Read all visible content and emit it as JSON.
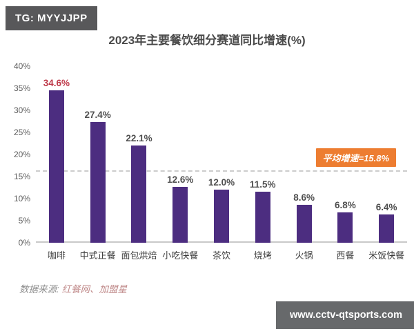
{
  "badges": {
    "tg": "TG: MYYJJPP",
    "website": "www.cctv-qtsports.com"
  },
  "chart_data": {
    "type": "bar",
    "title": "2023年主要餐饮细分赛道同比增速(%)",
    "categories": [
      "咖啡",
      "中式正餐",
      "面包烘焙",
      "小吃快餐",
      "茶饮",
      "烧烤",
      "火锅",
      "西餐",
      "米饭快餐"
    ],
    "values": [
      34.6,
      27.4,
      22.1,
      12.6,
      12.0,
      11.5,
      8.6,
      6.8,
      6.4
    ],
    "value_labels": [
      "34.6%",
      "27.4%",
      "22.1%",
      "12.6%",
      "12.0%",
      "11.5%",
      "8.6%",
      "6.8%",
      "6.4%"
    ],
    "highlight_index": 0,
    "y_ticks": [
      "40%",
      "35%",
      "30%",
      "25%",
      "20%",
      "15%",
      "10%",
      "5%",
      "0%"
    ],
    "ylim": [
      0,
      40
    ],
    "grid": false,
    "legend": false,
    "average_line": {
      "value": 15.8,
      "label": "平均增速=15.8%"
    },
    "colors": {
      "bar": "#4c2d80",
      "highlight_value_text": "#bf3b4b",
      "value_text": "#4f4f4f",
      "average_badge_bg": "#ed7d31",
      "axis_line": "#c9c9c9",
      "dashed_line": "#cccccc"
    }
  },
  "source": {
    "label": "数据来源: ",
    "names": "红餐网、加盟星"
  }
}
